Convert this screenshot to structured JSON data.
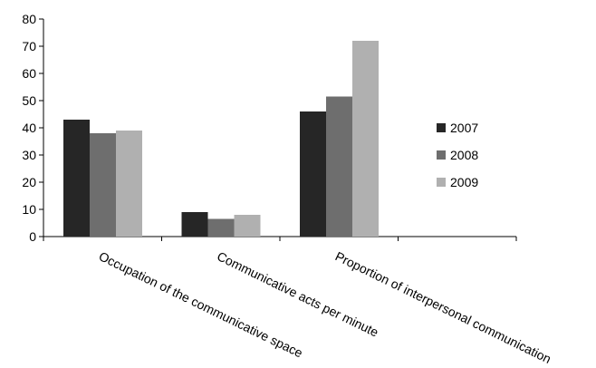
{
  "chart_data": {
    "type": "bar",
    "categories": [
      "Occupation of the communicative space",
      "Communicative acts per minute",
      "Proportion of interpersonal communication",
      ""
    ],
    "series": [
      {
        "name": "2007",
        "color": "#262626",
        "values": [
          43,
          9,
          46,
          null
        ]
      },
      {
        "name": "2008",
        "color": "#6e6e6e",
        "values": [
          38,
          6.5,
          51.5,
          null
        ]
      },
      {
        "name": "2009",
        "color": "#b0b0b0",
        "values": [
          39,
          8,
          72,
          null
        ]
      }
    ],
    "yticks": [
      0,
      10,
      20,
      30,
      40,
      50,
      60,
      70,
      80
    ],
    "ylim": [
      0,
      80
    ],
    "grid": false,
    "legend_position": "right"
  }
}
